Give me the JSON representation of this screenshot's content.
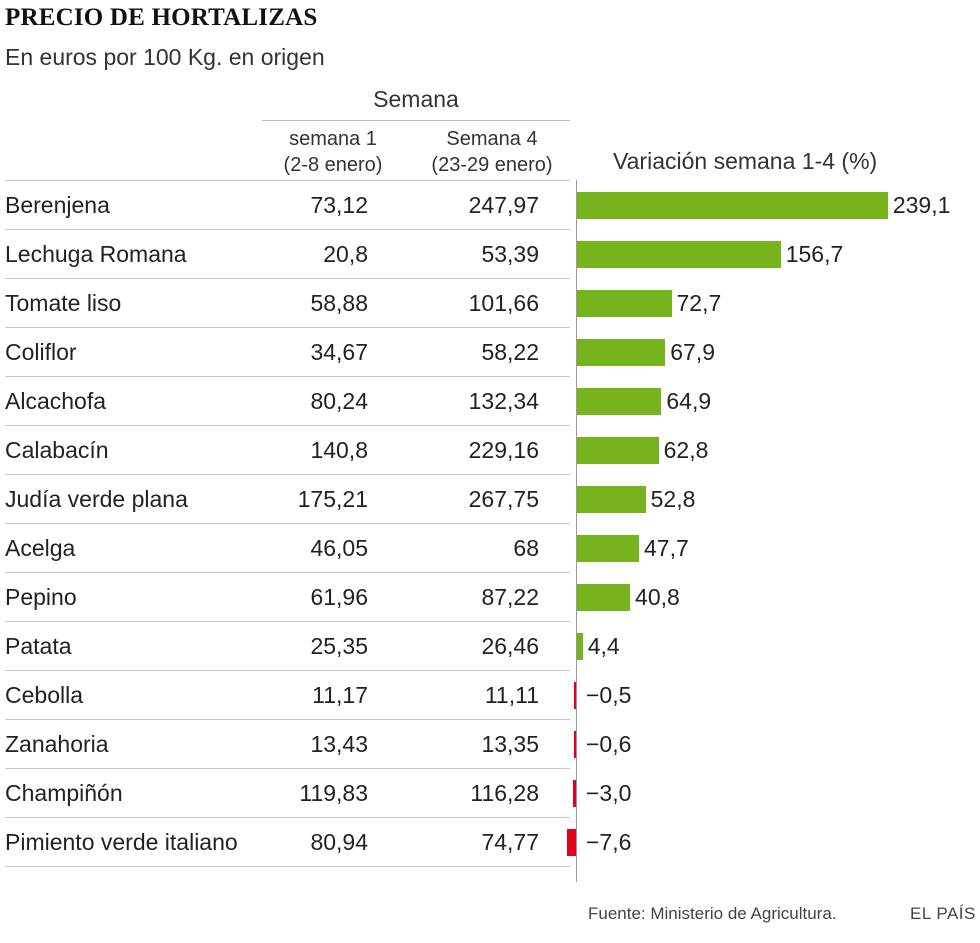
{
  "title": "PRECIO DE HORTALIZAS",
  "subtitle": "En euros por 100 Kg. en origen",
  "table": {
    "group_header": "Semana",
    "col1_line1": "semana 1",
    "col1_line2": "(2-8 enero)",
    "col2_line1": "Semana 4",
    "col2_line2": "(23-29 enero)",
    "variation_header": "Variación semana 1-4 (%)"
  },
  "source": "Fuente: Ministerio de Agricultura.",
  "brand": "EL PAÍS",
  "colors": {
    "positive": "#76b31c",
    "negative": "#e0001b"
  },
  "chart_data": {
    "type": "bar",
    "orientation": "horizontal",
    "title": "Variación semana 1-4 (%)",
    "categories": [
      "Berenjena",
      "Lechuga Romana",
      "Tomate liso",
      "Coliflor",
      "Alcachofa",
      "Calabacín",
      "Judía verde plana",
      "Acelga",
      "Pepino",
      "Patata",
      "Cebolla",
      "Zanahoria",
      "Champiñón",
      "Pimiento verde italiano"
    ],
    "week1": [
      "73,12",
      "20,8",
      "58,88",
      "34,67",
      "80,24",
      "140,8",
      "175,21",
      "46,05",
      "61,96",
      "25,35",
      "11,17",
      "13,43",
      "119,83",
      "80,94"
    ],
    "week4": [
      "247,97",
      "53,39",
      "101,66",
      "58,22",
      "132,34",
      "229,16",
      "267,75",
      "68",
      "87,22",
      "26,46",
      "11,11",
      "13,35",
      "116,28",
      "74,77"
    ],
    "values": [
      239.1,
      156.7,
      72.7,
      67.9,
      64.9,
      62.8,
      52.8,
      47.7,
      40.8,
      4.4,
      -0.5,
      -0.6,
      -3.0,
      -7.6
    ],
    "labels": [
      "239,1",
      "156,7",
      "72,7",
      "67,9",
      "64,9",
      "62,8",
      "52,8",
      "47,7",
      "40,8",
      "4,4",
      "−0,5",
      "−0,6",
      "−3,0",
      "−7,6"
    ],
    "xlabel": "",
    "ylabel": ""
  }
}
